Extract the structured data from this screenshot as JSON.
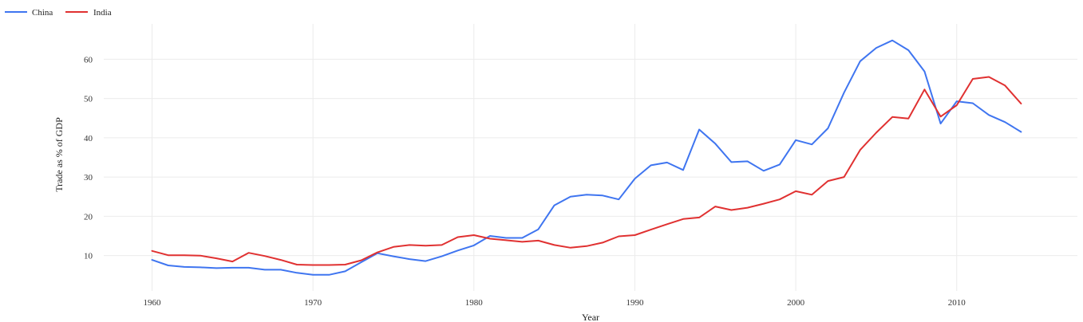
{
  "chart_data": {
    "type": "line",
    "title": "",
    "xlabel": "Year",
    "ylabel": "Trade as % of GDP",
    "xlim": [
      1957,
      2017.5
    ],
    "ylim": [
      1,
      69
    ],
    "x_ticks": [
      1960,
      1970,
      1980,
      1990,
      2000,
      2010
    ],
    "y_ticks": [
      10,
      20,
      30,
      40,
      50,
      60
    ],
    "grid": true,
    "legend": "top-left",
    "x": [
      1960,
      1961,
      1962,
      1963,
      1964,
      1965,
      1966,
      1967,
      1968,
      1969,
      1970,
      1971,
      1972,
      1973,
      1974,
      1975,
      1976,
      1977,
      1978,
      1979,
      1980,
      1981,
      1982,
      1983,
      1984,
      1985,
      1986,
      1987,
      1988,
      1989,
      1990,
      1991,
      1992,
      1993,
      1994,
      1995,
      1996,
      1997,
      1998,
      1999,
      2000,
      2001,
      2002,
      2003,
      2004,
      2005,
      2006,
      2007,
      2008,
      2009,
      2010,
      2011,
      2012,
      2013,
      2014
    ],
    "series": [
      {
        "name": "China",
        "color": "#3f75f0",
        "values": [
          8.9,
          7.5,
          7.1,
          7.0,
          6.8,
          6.9,
          6.9,
          6.4,
          6.4,
          5.6,
          5.1,
          5.1,
          6.0,
          8.3,
          10.6,
          9.8,
          9.1,
          8.6,
          9.8,
          11.3,
          12.6,
          15.0,
          14.5,
          14.5,
          16.7,
          22.8,
          25.0,
          25.5,
          25.3,
          24.3,
          29.6,
          33.0,
          33.7,
          31.8,
          42.1,
          38.5,
          33.8,
          34.0,
          31.6,
          33.2,
          39.4,
          38.3,
          42.4,
          51.5,
          59.5,
          62.9,
          64.8,
          62.3,
          56.9,
          43.6,
          49.3,
          48.8,
          45.8,
          44.0,
          41.5
        ]
      },
      {
        "name": "India",
        "color": "#e03131",
        "values": [
          11.2,
          10.1,
          10.1,
          10.0,
          9.3,
          8.5,
          10.7,
          9.9,
          8.9,
          7.7,
          7.6,
          7.6,
          7.7,
          8.8,
          10.8,
          12.2,
          12.7,
          12.5,
          12.7,
          14.7,
          15.2,
          14.3,
          13.9,
          13.5,
          13.8,
          12.7,
          12.0,
          12.4,
          13.3,
          14.9,
          15.2,
          16.6,
          18.0,
          19.3,
          19.7,
          22.5,
          21.6,
          22.2,
          23.2,
          24.3,
          26.4,
          25.5,
          29.0,
          30.0,
          36.9,
          41.3,
          45.3,
          44.9,
          52.3,
          45.4,
          48.3,
          55.0,
          55.5,
          53.3,
          48.7
        ]
      }
    ]
  }
}
